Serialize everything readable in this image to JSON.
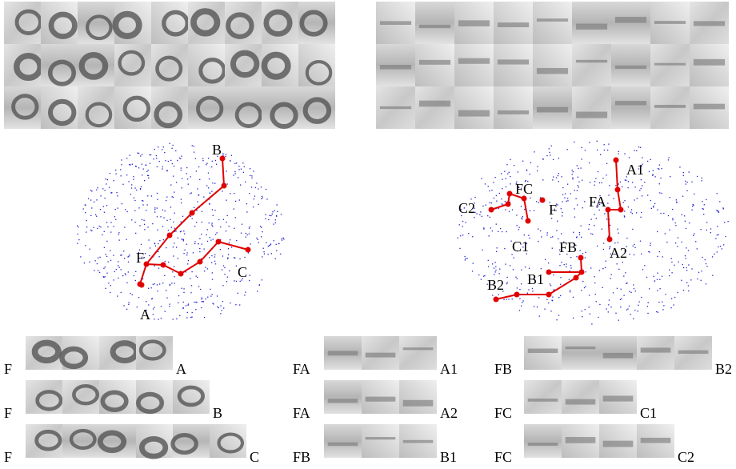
{
  "left_map": {
    "labels": [
      "B",
      "F",
      "C",
      "A"
    ]
  },
  "right_map": {
    "labels": [
      "A1",
      "FA",
      "A2",
      "FC",
      "C2",
      "F",
      "C1",
      "FB",
      "B1",
      "B2"
    ]
  },
  "sequences": [
    {
      "start": "F",
      "end": "A"
    },
    {
      "start": "F",
      "end": "B"
    },
    {
      "start": "F",
      "end": "C"
    },
    {
      "start": "FA",
      "end": "A1"
    },
    {
      "start": "FA",
      "end": "A2"
    },
    {
      "start": "FB",
      "end": "B1"
    },
    {
      "start": "FB",
      "end": "B2"
    },
    {
      "start": "FC",
      "end": "C1"
    },
    {
      "start": "FC",
      "end": "C2"
    }
  ]
}
